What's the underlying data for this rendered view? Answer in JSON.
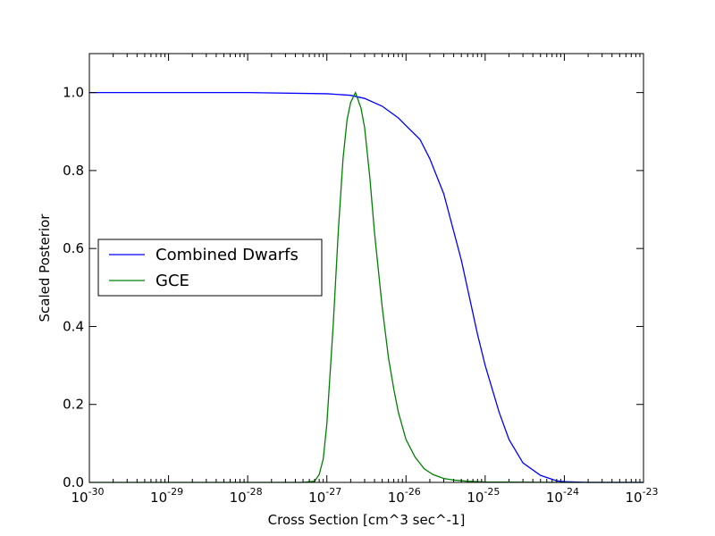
{
  "chart_data": {
    "type": "line",
    "title": "",
    "xlabel": "Cross Section [cm^3 sec^-1]",
    "ylabel": "Scaled Posterior",
    "x_scale": "log",
    "xlim": [
      1e-30,
      1e-23
    ],
    "ylim": [
      0.0,
      1.1
    ],
    "grid": false,
    "legend_position": "center-left",
    "x_ticks": [
      {
        "base": "10",
        "exp": "-30",
        "value": 1e-30
      },
      {
        "base": "10",
        "exp": "-29",
        "value": 1e-29
      },
      {
        "base": "10",
        "exp": "-28",
        "value": 1e-28
      },
      {
        "base": "10",
        "exp": "-27",
        "value": 1e-27
      },
      {
        "base": "10",
        "exp": "-26",
        "value": 1e-26
      },
      {
        "base": "10",
        "exp": "-25",
        "value": 1e-25
      },
      {
        "base": "10",
        "exp": "-24",
        "value": 1e-24
      },
      {
        "base": "10",
        "exp": "-23",
        "value": 1e-23
      }
    ],
    "y_ticks": [
      {
        "label": "0.0",
        "value": 0.0
      },
      {
        "label": "0.2",
        "value": 0.2
      },
      {
        "label": "0.4",
        "value": 0.4
      },
      {
        "label": "0.6",
        "value": 0.6
      },
      {
        "label": "0.8",
        "value": 0.8
      },
      {
        "label": "1.0",
        "value": 1.0
      }
    ],
    "series": [
      {
        "name": "Combined Dwarfs",
        "color": "#0000ff",
        "x": [
          1e-30,
          1e-29,
          1e-28,
          1e-27,
          2e-27,
          3e-27,
          5e-27,
          8e-27,
          1e-26,
          1.5e-26,
          2e-26,
          3e-26,
          5e-26,
          8e-26,
          1e-25,
          1.5e-25,
          2e-25,
          3e-25,
          5e-25,
          8e-25,
          1e-24,
          2e-24,
          1e-23
        ],
        "y": [
          1.0,
          1.0,
          1.0,
          0.997,
          0.993,
          0.985,
          0.965,
          0.935,
          0.915,
          0.88,
          0.83,
          0.74,
          0.57,
          0.38,
          0.3,
          0.18,
          0.11,
          0.05,
          0.018,
          0.004,
          0.002,
          0.0,
          0.0
        ]
      },
      {
        "name": "GCE",
        "color": "#008000",
        "x": [
          1e-30,
          1e-28,
          5e-28,
          7e-28,
          8e-28,
          9e-28,
          1e-27,
          1.2e-27,
          1.4e-27,
          1.6e-27,
          1.8e-27,
          2e-27,
          2.3e-27,
          2.7e-27,
          3e-27,
          3.5e-27,
          4e-27,
          5e-27,
          6e-27,
          7e-27,
          8e-27,
          1e-26,
          1.3e-26,
          1.7e-26,
          2.2e-26,
          3e-26,
          4e-26,
          6e-26,
          1e-25,
          1e-24,
          1e-23
        ],
        "y": [
          0.0,
          0.0,
          0.0,
          0.003,
          0.02,
          0.06,
          0.15,
          0.4,
          0.65,
          0.83,
          0.93,
          0.975,
          1.0,
          0.96,
          0.91,
          0.78,
          0.64,
          0.45,
          0.32,
          0.24,
          0.18,
          0.11,
          0.065,
          0.035,
          0.02,
          0.01,
          0.006,
          0.003,
          0.001,
          0.0,
          0.0
        ]
      }
    ]
  }
}
